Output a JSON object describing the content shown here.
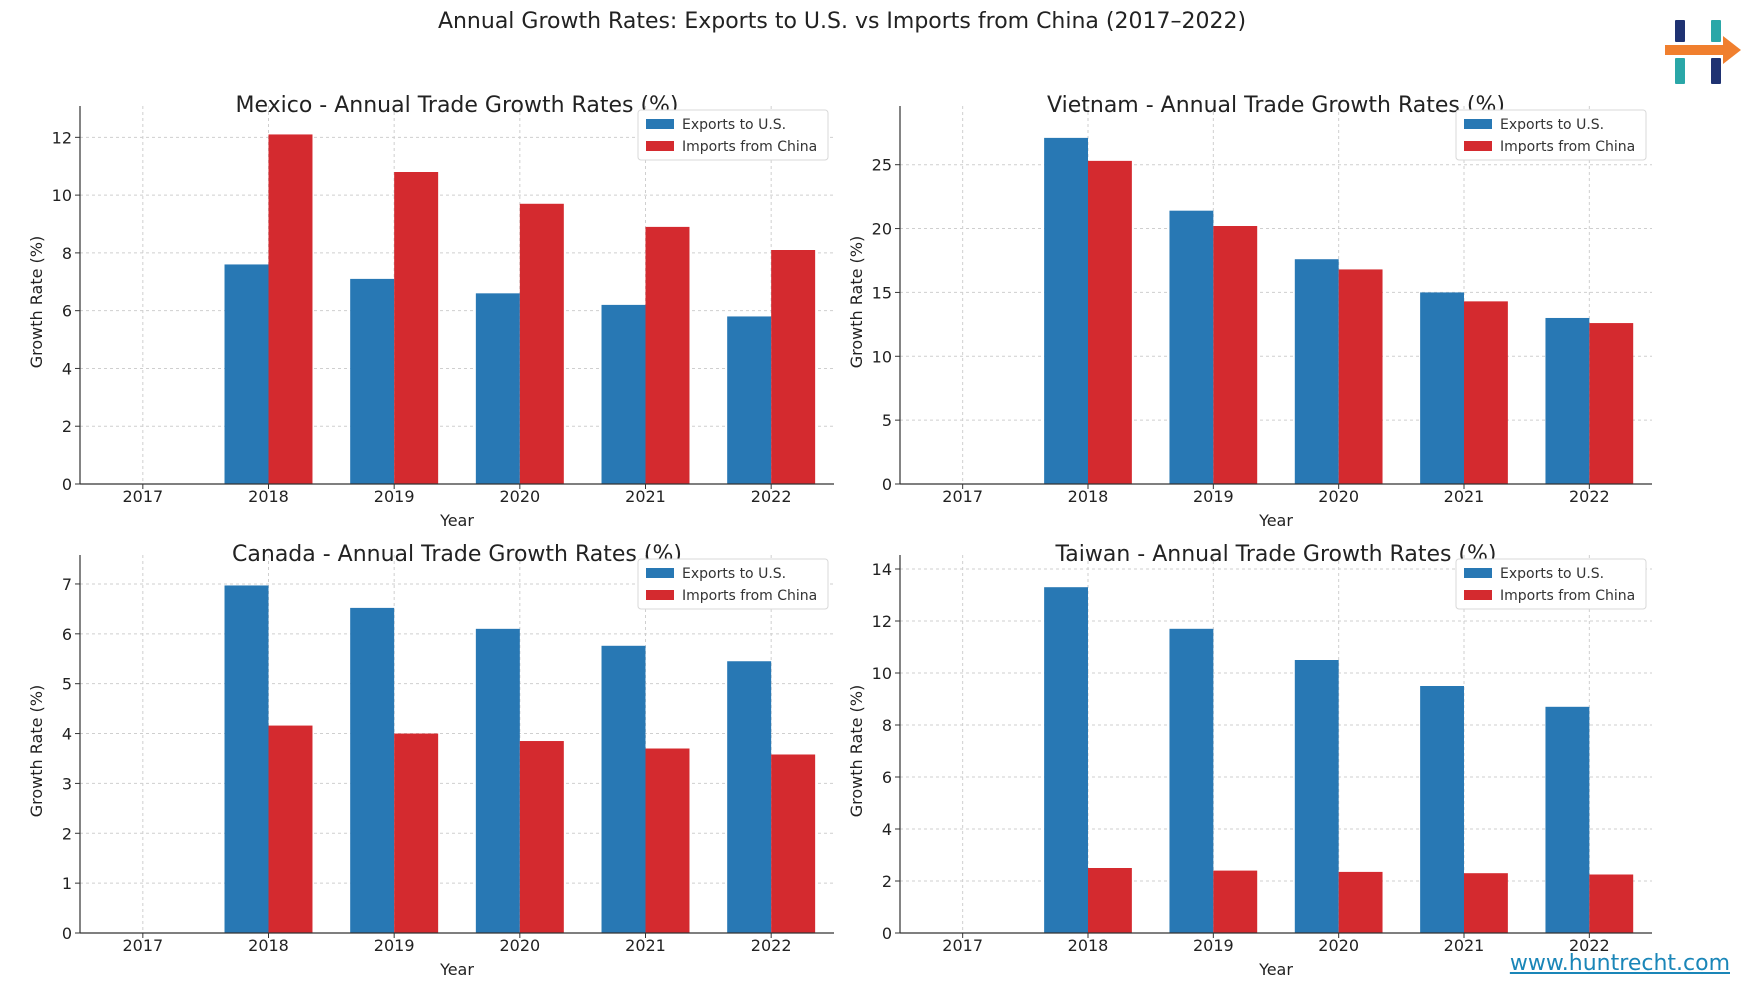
{
  "page": {
    "title": "Annual Growth Rates: Exports to U.S. vs Imports from China (2017–2022)",
    "website": "www.huntrecht.com",
    "colors": {
      "exports": "#2878b4",
      "imports": "#d42a2f",
      "logo_navy": "#1f3272",
      "logo_teal": "#2aa7a8",
      "logo_orange": "#f07f2e",
      "link": "#1a86b8"
    }
  },
  "chart_data": [
    {
      "type": "bar",
      "title": "Mexico - Annual Trade Growth Rates (%)",
      "xlabel": "Year",
      "ylabel": "Growth Rate (%)",
      "categories": [
        "2017",
        "2018",
        "2019",
        "2020",
        "2021",
        "2022"
      ],
      "ylim": [
        0,
        12.6
      ],
      "yticks": [
        0,
        2,
        4,
        6,
        8,
        10,
        12
      ],
      "grid": true,
      "legend": "top-right",
      "series": [
        {
          "name": "Exports to U.S.",
          "values": [
            null,
            7.6,
            7.1,
            6.6,
            6.2,
            5.8
          ]
        },
        {
          "name": "Imports from China",
          "values": [
            null,
            12.1,
            10.8,
            9.7,
            8.9,
            8.1
          ]
        }
      ]
    },
    {
      "type": "bar",
      "title": "Vietnam - Annual Trade Growth Rates (%)",
      "xlabel": "Year",
      "ylabel": "Growth Rate (%)",
      "categories": [
        "2017",
        "2018",
        "2019",
        "2020",
        "2021",
        "2022"
      ],
      "ylim": [
        0,
        28.5
      ],
      "yticks": [
        0,
        5,
        10,
        15,
        20,
        25
      ],
      "grid": true,
      "legend": "top-right",
      "series": [
        {
          "name": "Exports to U.S.",
          "values": [
            null,
            27.1,
            21.4,
            17.6,
            15.0,
            13.0
          ]
        },
        {
          "name": "Imports from China",
          "values": [
            null,
            25.3,
            20.2,
            16.8,
            14.3,
            12.6
          ]
        }
      ]
    },
    {
      "type": "bar",
      "title": "Canada - Annual Trade Growth Rates (%)",
      "xlabel": "Year",
      "ylabel": "Growth Rate (%)",
      "categories": [
        "2017",
        "2018",
        "2019",
        "2020",
        "2021",
        "2022"
      ],
      "ylim": [
        0,
        7.3
      ],
      "yticks": [
        0,
        1,
        2,
        3,
        4,
        5,
        6,
        7
      ],
      "grid": true,
      "legend": "top-right",
      "series": [
        {
          "name": "Exports to U.S.",
          "values": [
            null,
            6.97,
            6.52,
            6.1,
            5.76,
            5.45
          ]
        },
        {
          "name": "Imports from China",
          "values": [
            null,
            4.16,
            4.0,
            3.85,
            3.7,
            3.58
          ]
        }
      ]
    },
    {
      "type": "bar",
      "title": "Taiwan - Annual Trade Growth Rates (%)",
      "xlabel": "Year",
      "ylabel": "Growth Rate (%)",
      "categories": [
        "2017",
        "2018",
        "2019",
        "2020",
        "2021",
        "2022"
      ],
      "ylim": [
        0,
        14
      ],
      "yticks": [
        0,
        2,
        4,
        6,
        8,
        10,
        12,
        14
      ],
      "grid": true,
      "legend": "top-right",
      "series": [
        {
          "name": "Exports to U.S.",
          "values": [
            null,
            13.3,
            11.7,
            10.5,
            9.5,
            8.7
          ]
        },
        {
          "name": "Imports from China",
          "values": [
            null,
            2.5,
            2.4,
            2.35,
            2.3,
            2.25
          ]
        }
      ]
    }
  ]
}
